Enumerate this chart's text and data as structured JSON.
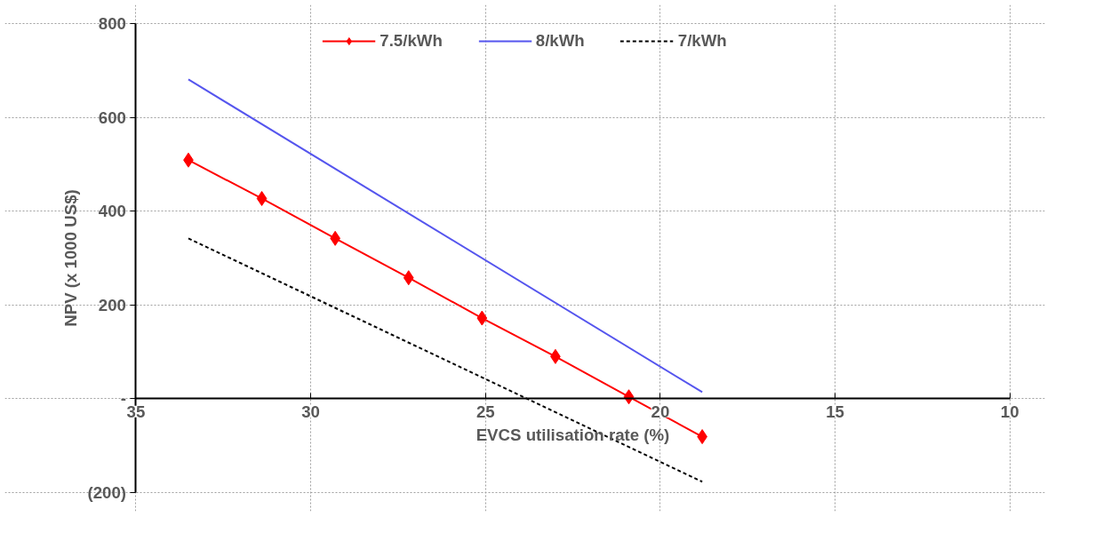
{
  "chart_data": {
    "type": "line",
    "xlabel": "EVCS utilisation rate (%)",
    "ylabel": "NPV (x 1000 US$)",
    "xlim": [
      35,
      10
    ],
    "ylim": [
      -200,
      800
    ],
    "xticks": [
      35,
      30,
      25,
      20,
      15,
      10
    ],
    "yticks": [
      {
        "value": -200,
        "label": "(200)"
      },
      {
        "value": 0,
        "label": "-"
      },
      200,
      400,
      600,
      800
    ],
    "grid": true,
    "legend": "top",
    "series": [
      {
        "name": "7.5/kWh",
        "color": "#ff0000",
        "marker": "diamond",
        "line_style": "solid",
        "x": [
          33.5,
          31.4,
          29.3,
          27.2,
          25.1,
          23.0,
          20.9,
          18.8
        ],
        "values": [
          509,
          427,
          342,
          258,
          172,
          90,
          4,
          -81
        ]
      },
      {
        "name": "8/kWh",
        "color": "#5555ee",
        "marker": "none",
        "line_style": "solid",
        "x": [
          33.5,
          18.8
        ],
        "values": [
          681,
          14
        ]
      },
      {
        "name": "7/kWh",
        "color": "#000000",
        "marker": "none",
        "line_style": "dashed",
        "x": [
          33.5,
          18.8
        ],
        "values": [
          342,
          -177
        ]
      }
    ]
  }
}
